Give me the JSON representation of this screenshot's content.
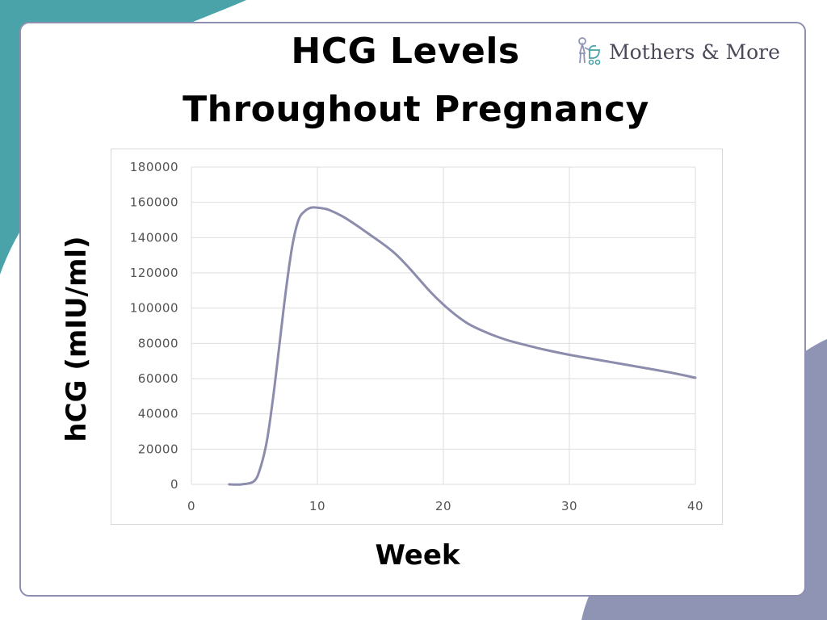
{
  "title_line1": "HCG Levels",
  "title_line2": "Throughout Pregnancy",
  "brand": {
    "name": "Mothers & More",
    "icon": "mother-with-stroller-icon"
  },
  "colors": {
    "teal_blob": "#4aa3a8",
    "lavender_blob": "#8f94b5",
    "line": "#8c8cad",
    "border": "#8c8fb0"
  },
  "chart_data": {
    "type": "line",
    "xlabel": "Week",
    "ylabel": "hCG (mIU/ml)",
    "xlim": [
      0,
      40
    ],
    "ylim": [
      0,
      180000
    ],
    "xticks": [
      0,
      10,
      20,
      30,
      40
    ],
    "yticks": [
      0,
      20000,
      40000,
      60000,
      80000,
      100000,
      120000,
      140000,
      160000,
      180000
    ],
    "grid": true,
    "series": [
      {
        "x": [
          3,
          4,
          5,
          5.5,
          6,
          6.5,
          7,
          7.5,
          8,
          8.5,
          9,
          9.5,
          10,
          10.5,
          11,
          12,
          13,
          14,
          15,
          16,
          17,
          18,
          19,
          20,
          21,
          22,
          23,
          24,
          25,
          26,
          28,
          30,
          32,
          34,
          36,
          38,
          40
        ],
        "y": [
          0,
          0,
          2000,
          10000,
          25000,
          50000,
          80000,
          110000,
          135000,
          150000,
          155000,
          157000,
          157000,
          156500,
          155500,
          152000,
          147500,
          142500,
          137500,
          132000,
          125000,
          117000,
          109000,
          102000,
          96000,
          91000,
          87500,
          84500,
          82000,
          80000,
          76500,
          73500,
          71000,
          68500,
          66000,
          63500,
          60500
        ]
      }
    ]
  }
}
